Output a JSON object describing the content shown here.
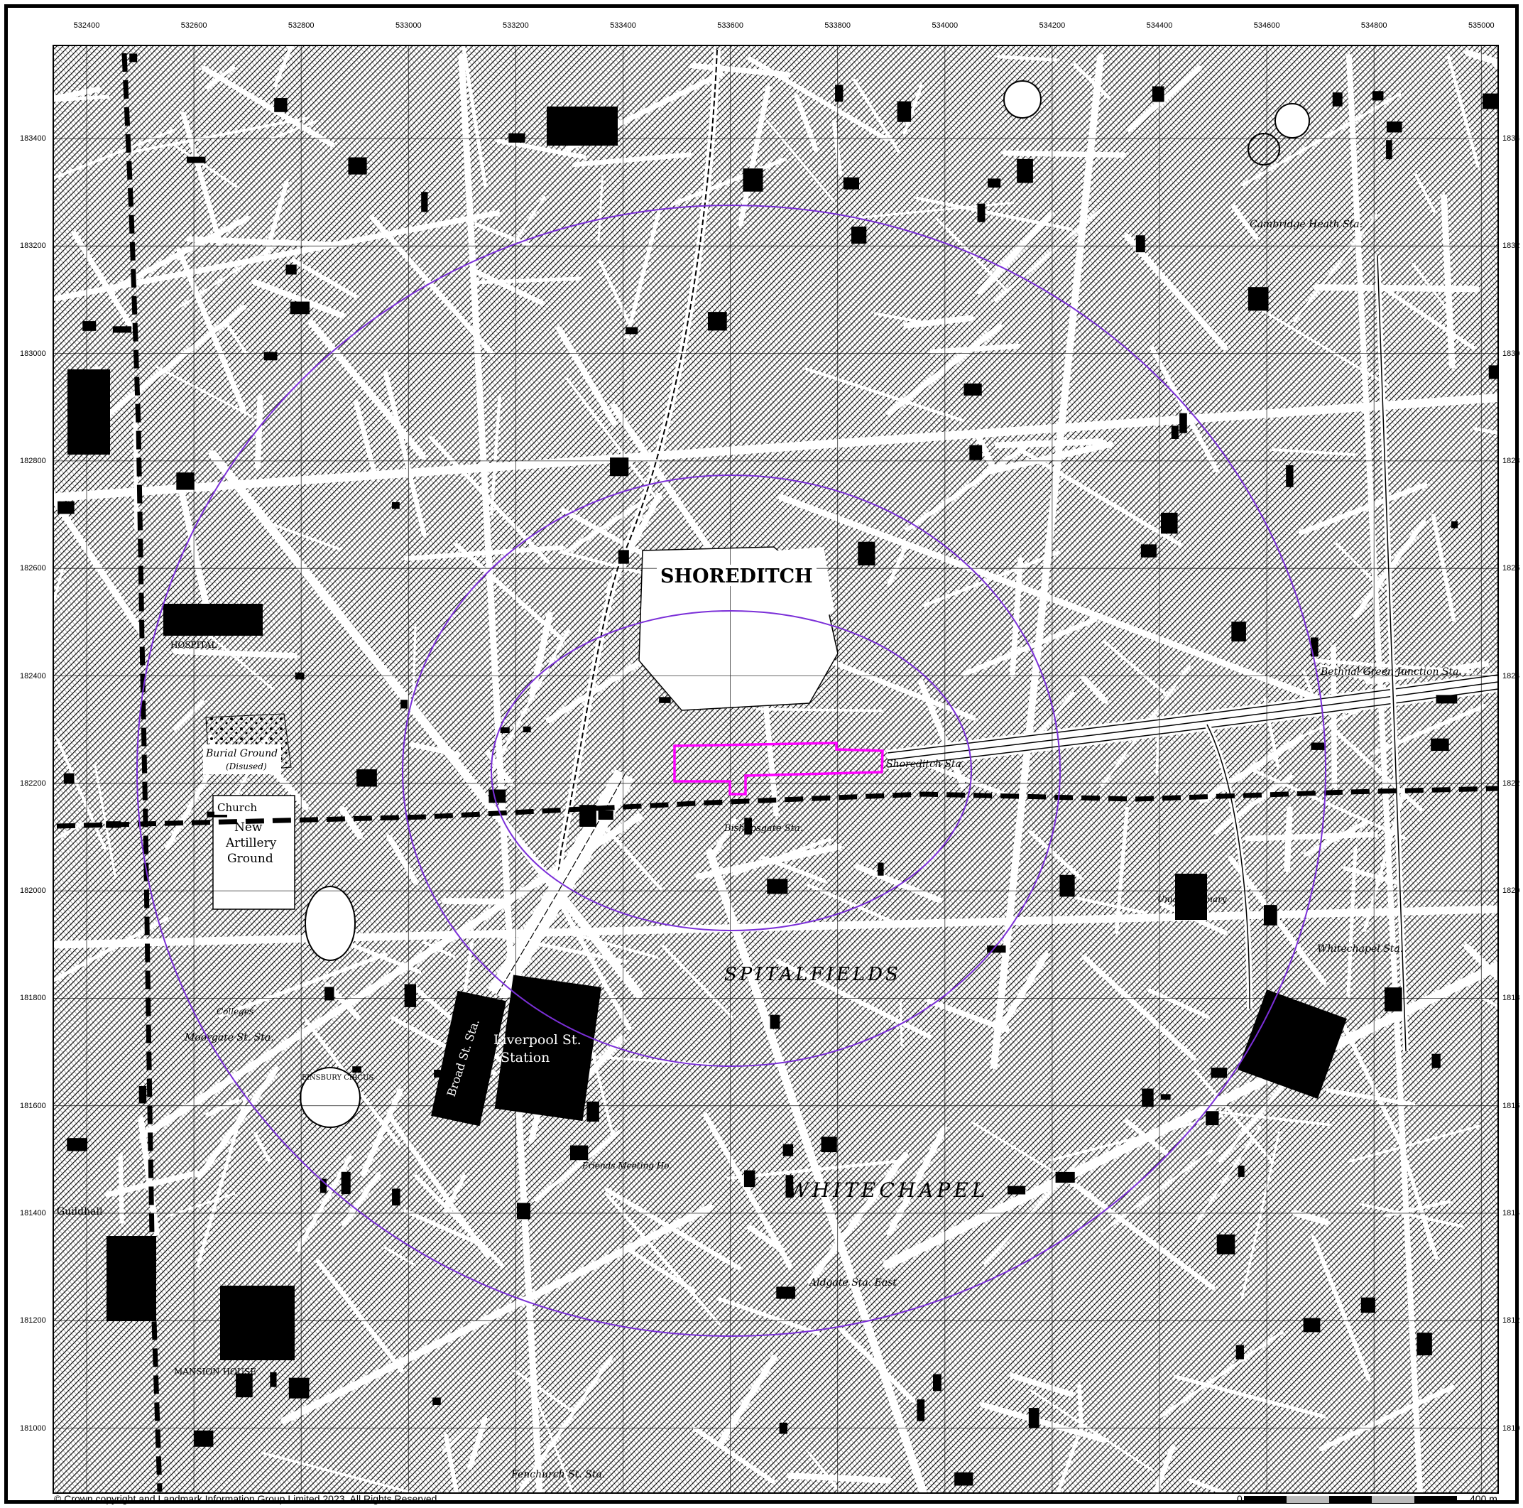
{
  "grid": {
    "eastings": [
      "532400",
      "532600",
      "532800",
      "533000",
      "533200",
      "533400",
      "533600",
      "533800",
      "534000",
      "534200",
      "534400",
      "534600",
      "534800",
      "535000"
    ],
    "northings": [
      "183400",
      "183200",
      "183000",
      "182800",
      "182600",
      "182400",
      "182200",
      "182000",
      "181800",
      "181600",
      "181400",
      "181200",
      "181000"
    ]
  },
  "labels": {
    "shoreditch": "SHOREDITCH",
    "liverpool_1": "Liverpool St.",
    "liverpool_2": "Station",
    "broad_st": "Broad St. Sta.",
    "new_artillery_1": "New",
    "new_artillery_2": "Artillery",
    "new_artillery_3": "Ground",
    "burial_ground": "Burial Ground",
    "disused": "(Disused)",
    "church": "Church",
    "spitalfields": "SPITALFIELDS",
    "whitechapel": "WHITECHAPEL",
    "bishopsgate": "Bishopsgate Sta.",
    "shoreditch_sta": "Shoreditch Sta.",
    "bethnal_green": "Bethnal Green Junction Sta.",
    "moorgate": "Moorgate St. Sta.",
    "whitechapel_sta": "Whitechapel Sta.",
    "fenchurch": "Fenchurch St. Sta.",
    "aldgate": "Aldgate Sta. East",
    "cambridge_heath": "Cambridge Heath Sta.",
    "mansion_house": "MANSION HOUSE",
    "guildhall": "Guildhall",
    "hospital": "HOSPITAL",
    "colleges": "Colleges",
    "union_infirmary": "Union Infirmary",
    "friends_meeting": "Friends Meeting Ho.",
    "finsbury_circus": "FINSBURY CIRCUS"
  },
  "footer": {
    "copyright": "© Crown copyright and Landmark Information Group Limited 2023.  All Rights Reserved.",
    "scale_zero": "0",
    "scale_unit": "400 m"
  },
  "colors": {
    "site_outline": "#ff00ff",
    "buffer_rings": "#7b2fd8",
    "boundary": "#000000"
  }
}
